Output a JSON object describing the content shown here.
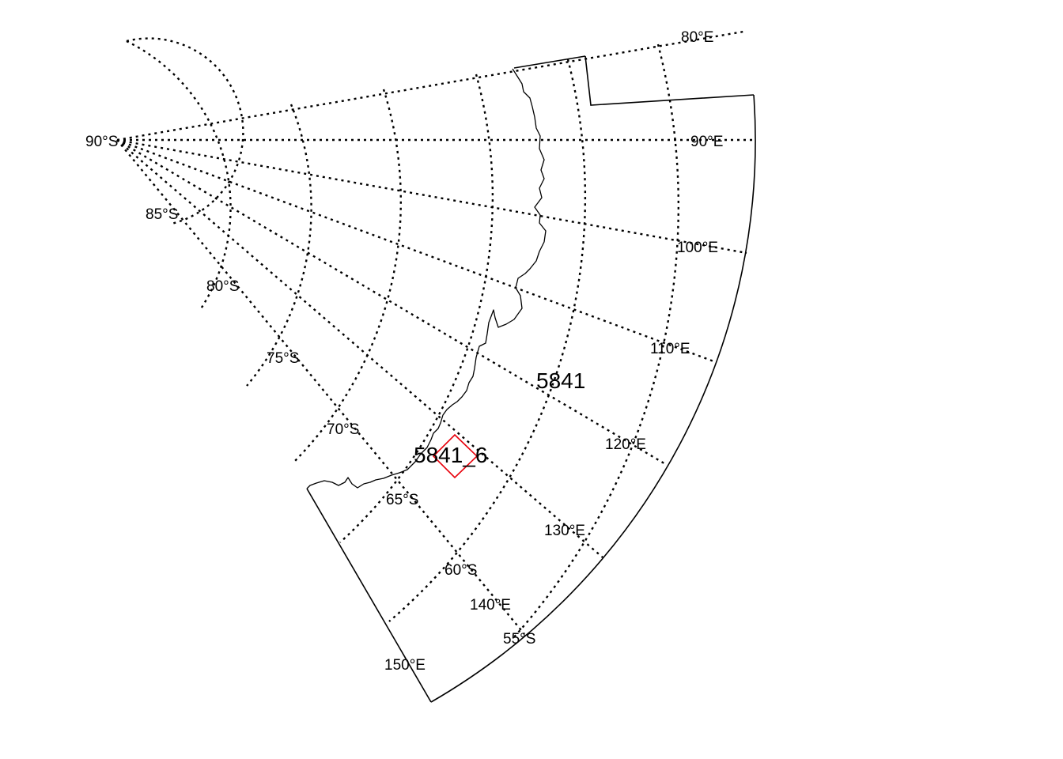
{
  "map": {
    "projection": "polar-stereographic-south",
    "longitude_range_deg": [
      80,
      150
    ],
    "latitude_range_deg": [
      -90,
      -50
    ],
    "graticule": {
      "style": "dotted",
      "color": "#000000"
    },
    "longitude_labels": [
      {
        "name": "lon-80",
        "lon": 80,
        "text": "80°E"
      },
      {
        "name": "lon-90",
        "lon": 90,
        "text": "90°E"
      },
      {
        "name": "lon-100",
        "lon": 100,
        "text": "100°E"
      },
      {
        "name": "lon-110",
        "lon": 110,
        "text": "110°E"
      },
      {
        "name": "lon-120",
        "lon": 120,
        "text": "120°E"
      },
      {
        "name": "lon-130",
        "lon": 130,
        "text": "130°E"
      },
      {
        "name": "lon-140",
        "lon": 140,
        "text": "140°E"
      },
      {
        "name": "lon-150",
        "lon": 150,
        "text": "150°E"
      }
    ],
    "latitude_labels": [
      {
        "name": "lat-90",
        "lat": -90,
        "text": "90°S"
      },
      {
        "name": "lat-85",
        "lat": -85,
        "text": "85°S"
      },
      {
        "name": "lat-80",
        "lat": -80,
        "text": "80°S"
      },
      {
        "name": "lat-75",
        "lat": -75,
        "text": "75°S"
      },
      {
        "name": "lat-70",
        "lat": -70,
        "text": "70°S"
      },
      {
        "name": "lat-65",
        "lat": -65,
        "text": "65°S"
      },
      {
        "name": "lat-60",
        "lat": -60,
        "text": "60°S"
      },
      {
        "name": "lat-55",
        "lat": -55,
        "text": "55°S"
      }
    ],
    "areas": [
      {
        "name": "area-5841",
        "text": "5841"
      },
      {
        "name": "area-5841-6",
        "text": "5841_6",
        "outline_color": "#e8000b"
      }
    ],
    "colors": {
      "lines": "#000000",
      "highlight": "#e8000b",
      "background": "#ffffff"
    }
  }
}
